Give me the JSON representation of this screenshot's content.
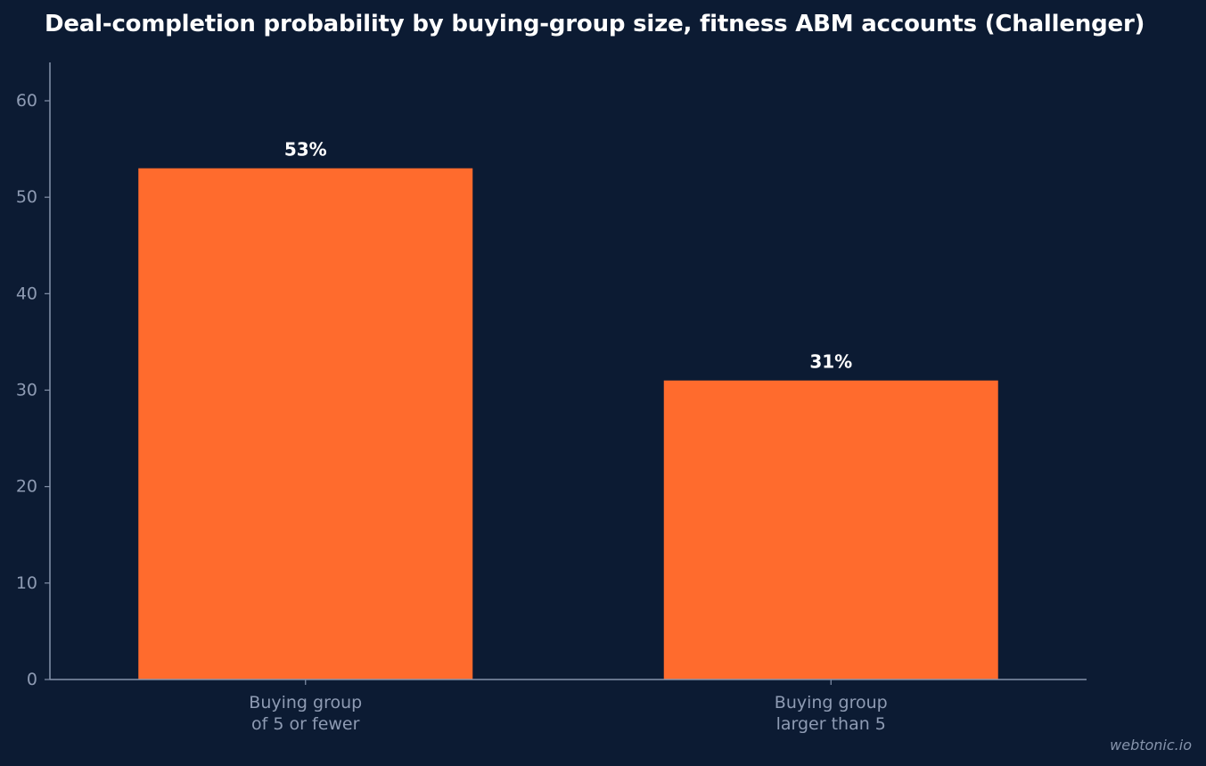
{
  "chart_data": {
    "type": "bar",
    "title": "Deal-completion probability by buying-group size, fitness ABM accounts (Challenger)",
    "xlabel": "",
    "ylabel": "",
    "categories": [
      [
        "Buying group",
        "of 5 or fewer"
      ],
      [
        "Buying group",
        "larger than 5"
      ]
    ],
    "values": [
      53,
      31
    ],
    "data_labels": [
      "53%",
      "31%"
    ],
    "ylim": [
      0,
      64
    ],
    "yticks": [
      0,
      10,
      20,
      30,
      40,
      50,
      60
    ],
    "grid": false,
    "legend": "none",
    "bar_color": "#ff6b2d"
  },
  "credit": "webtonic.io"
}
